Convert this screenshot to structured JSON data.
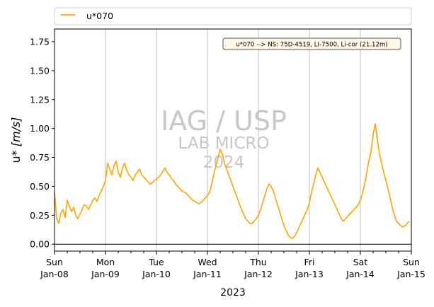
{
  "chart_data": {
    "type": "line",
    "title": "",
    "xlabel": "2023",
    "ylabel_prefix": "u* ",
    "ylabel_unit": "[m/s]",
    "ylim": [
      -0.06,
      1.86
    ],
    "yticks": [
      0.0,
      0.25,
      0.5,
      0.75,
      1.0,
      1.25,
      1.5,
      1.75
    ],
    "ytick_labels": [
      "0.00",
      "0.25",
      "0.50",
      "0.75",
      "1.00",
      "1.25",
      "1.50",
      "1.75"
    ],
    "xlim": [
      "2023-01-08",
      "2023-01-15"
    ],
    "grid": "vertical",
    "zero_line": true,
    "xticks": [
      {
        "day": "Sun",
        "date": "Jan-08"
      },
      {
        "day": "Mon",
        "date": "Jan-09"
      },
      {
        "day": "Tue",
        "date": "Jan-10"
      },
      {
        "day": "Wed",
        "date": "Jan-11"
      },
      {
        "day": "Thu",
        "date": "Jan-12"
      },
      {
        "day": "Fri",
        "date": "Jan-13"
      },
      {
        "day": "Sat",
        "date": "Jan-14"
      },
      {
        "day": "Sun",
        "date": "Jan-15"
      }
    ],
    "legend": {
      "placement": "top, outside",
      "entries": [
        "u*070"
      ]
    },
    "annotation": "u*070 --> NS: 75D-4519, LI-7500, Li-cor (21.12m)",
    "watermark": [
      "IAG / USP",
      "LAB MICRO",
      "2024"
    ],
    "series": [
      {
        "name": "u*070",
        "color": "#ffa500",
        "x_start": "2023-01-08 00:00",
        "x_step_hours": 1,
        "values": [
          0.45,
          0.22,
          0.18,
          0.27,
          0.3,
          0.23,
          0.38,
          0.33,
          0.28,
          0.32,
          0.25,
          0.22,
          0.26,
          0.3,
          0.34,
          0.33,
          0.3,
          0.34,
          0.38,
          0.4,
          0.37,
          0.42,
          0.46,
          0.5,
          0.55,
          0.7,
          0.65,
          0.6,
          0.68,
          0.72,
          0.62,
          0.58,
          0.66,
          0.7,
          0.64,
          0.6,
          0.58,
          0.55,
          0.6,
          0.62,
          0.65,
          0.6,
          0.58,
          0.56,
          0.54,
          0.52,
          0.53,
          0.55,
          0.56,
          0.58,
          0.6,
          0.63,
          0.66,
          0.62,
          0.6,
          0.57,
          0.55,
          0.52,
          0.5,
          0.48,
          0.46,
          0.45,
          0.44,
          0.42,
          0.4,
          0.38,
          0.37,
          0.36,
          0.35,
          0.36,
          0.38,
          0.4,
          0.42,
          0.45,
          0.52,
          0.6,
          0.68,
          0.75,
          0.82,
          0.78,
          0.7,
          0.65,
          0.6,
          0.55,
          0.5,
          0.45,
          0.4,
          0.35,
          0.3,
          0.26,
          0.22,
          0.2,
          0.18,
          0.18,
          0.2,
          0.22,
          0.25,
          0.3,
          0.36,
          0.42,
          0.48,
          0.52,
          0.5,
          0.46,
          0.4,
          0.34,
          0.28,
          0.22,
          0.16,
          0.12,
          0.08,
          0.06,
          0.05,
          0.07,
          0.1,
          0.14,
          0.18,
          0.22,
          0.26,
          0.3,
          0.36,
          0.45,
          0.52,
          0.6,
          0.66,
          0.62,
          0.58,
          0.54,
          0.5,
          0.46,
          0.42,
          0.38,
          0.34,
          0.3,
          0.26,
          0.22,
          0.2,
          0.22,
          0.24,
          0.26,
          0.28,
          0.3,
          0.32,
          0.34,
          0.38,
          0.44,
          0.52,
          0.62,
          0.72,
          0.8,
          0.95,
          1.04,
          0.9,
          0.78,
          0.7,
          0.62,
          0.55,
          0.48,
          0.4,
          0.32,
          0.25,
          0.2,
          0.18,
          0.16,
          0.15,
          0.16,
          0.18,
          0.2
        ]
      }
    ]
  }
}
